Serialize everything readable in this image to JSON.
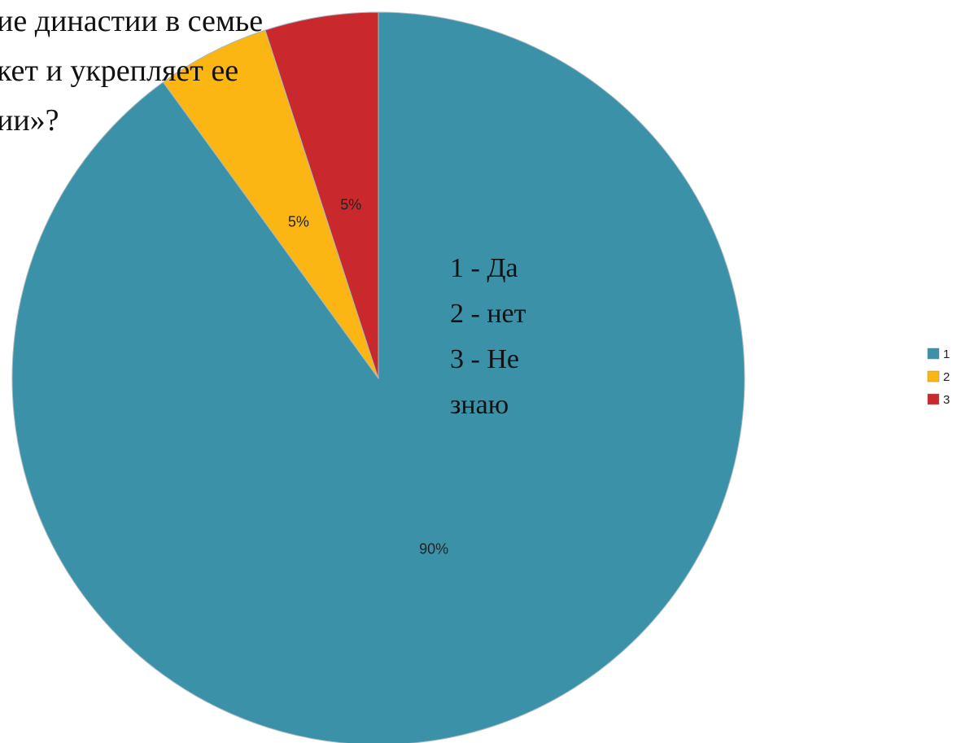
{
  "chart_data": {
    "type": "pie",
    "title_lines": [
      "ие династии в семье",
      "кет и укрепляет ее",
      "ии»?"
    ],
    "categories": [
      "1",
      "2",
      "3"
    ],
    "values": [
      90,
      5,
      5
    ],
    "labels": [
      "90%",
      "5%",
      "5%"
    ],
    "colors": [
      "#3a91a8",
      "#fbb613",
      "#c9292d"
    ],
    "legend_position": "right",
    "annotation_lines": [
      "1 - Да",
      "2 - нет",
      "3 - Не",
      "знаю"
    ]
  }
}
